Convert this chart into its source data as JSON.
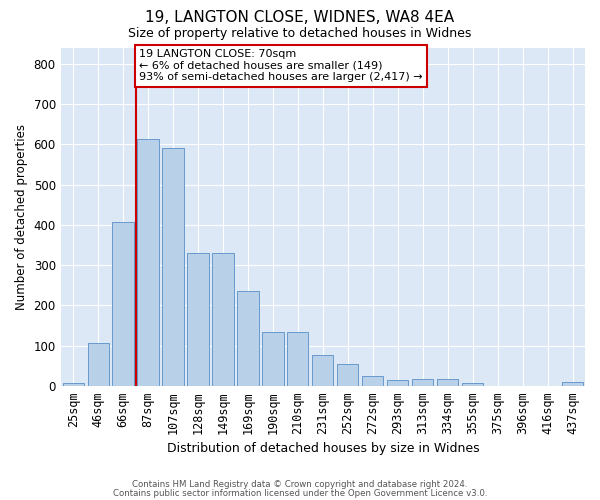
{
  "title1": "19, LANGTON CLOSE, WIDNES, WA8 4EA",
  "title2": "Size of property relative to detached houses in Widnes",
  "xlabel": "Distribution of detached houses by size in Widnes",
  "ylabel": "Number of detached properties",
  "categories": [
    "25sqm",
    "46sqm",
    "66sqm",
    "87sqm",
    "107sqm",
    "128sqm",
    "149sqm",
    "169sqm",
    "190sqm",
    "210sqm",
    "231sqm",
    "252sqm",
    "272sqm",
    "293sqm",
    "313sqm",
    "334sqm",
    "355sqm",
    "375sqm",
    "396sqm",
    "416sqm",
    "437sqm"
  ],
  "values": [
    8,
    106,
    406,
    614,
    590,
    330,
    330,
    237,
    135,
    135,
    78,
    54,
    24,
    15,
    17,
    17,
    7,
    1,
    1,
    1,
    10
  ],
  "bar_color": "#b8d0e8",
  "bar_edge_color": "#6699cc",
  "plot_bg_color": "#dce8f5",
  "vline_color": "#cc0000",
  "vline_x": 2.5,
  "annotation_text": "19 LANGTON CLOSE: 70sqm\n← 6% of detached houses are smaller (149)\n93% of semi-detached houses are larger (2,417) →",
  "annotation_box_edgecolor": "#cc0000",
  "ylim": [
    0,
    840
  ],
  "yticks": [
    0,
    100,
    200,
    300,
    400,
    500,
    600,
    700,
    800
  ],
  "footer1": "Contains HM Land Registry data © Crown copyright and database right 2024.",
  "footer2": "Contains public sector information licensed under the Open Government Licence v3.0."
}
